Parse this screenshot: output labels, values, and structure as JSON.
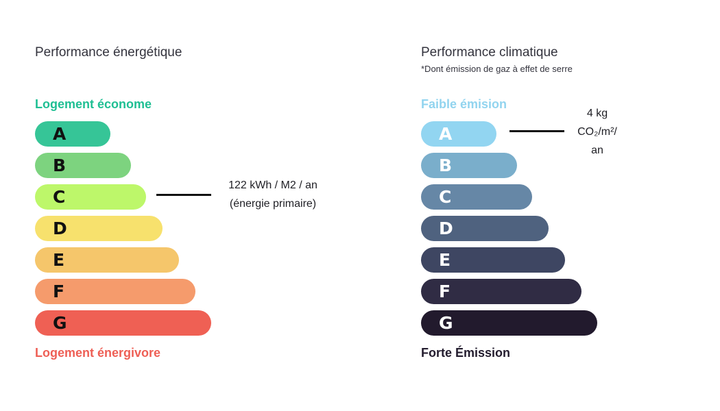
{
  "energy": {
    "title": "Performance énergétique",
    "top_label": "Logement économe",
    "top_label_color": "#1fbf93",
    "bottom_label": "Logement énergivore",
    "bottom_label_color": "#ee5f55",
    "value_line1": "122 kWh / M2 / an",
    "value_line2": "(énergie primaire)"
  },
  "climate": {
    "title": "Performance climatique",
    "subtitle": "*Dont émission de gaz à effet de serre",
    "top_label": "Faible émision",
    "top_label_color": "#92d4ef",
    "bottom_label": "Forte Émission",
    "bottom_label_color": "#231c2e",
    "value_line1": "4 kg",
    "value_line2": "CO₂/m²/",
    "value_line3": "an"
  },
  "chart_data": [
    {
      "type": "bar",
      "orientation": "horizontal",
      "title": "Performance énergétique",
      "categories": [
        "A",
        "B",
        "C",
        "D",
        "E",
        "F",
        "G"
      ],
      "colors": [
        "#36c597",
        "#7dd37f",
        "#bdf76a",
        "#f7e16d",
        "#f5c66b",
        "#f59b6c",
        "#ef6054"
      ],
      "label_colors": [
        "#111111",
        "#111111",
        "#111111",
        "#111111",
        "#111111",
        "#111111",
        "#111111"
      ],
      "highlighted": "C",
      "annotation": "122 kWh / M2 / an (énergie primaire)"
    },
    {
      "type": "bar",
      "orientation": "horizontal",
      "title": "Performance climatique",
      "categories": [
        "A",
        "B",
        "C",
        "D",
        "E",
        "F",
        "G"
      ],
      "colors": [
        "#92d5f1",
        "#7aaecb",
        "#6687a6",
        "#4f627f",
        "#3e4662",
        "#302c44",
        "#221a2d"
      ],
      "label_colors": [
        "#ffffff",
        "#ffffff",
        "#ffffff",
        "#ffffff",
        "#ffffff",
        "#ffffff",
        "#ffffff"
      ],
      "highlighted": "A",
      "annotation": "4 kg CO₂/m²/ an"
    }
  ]
}
